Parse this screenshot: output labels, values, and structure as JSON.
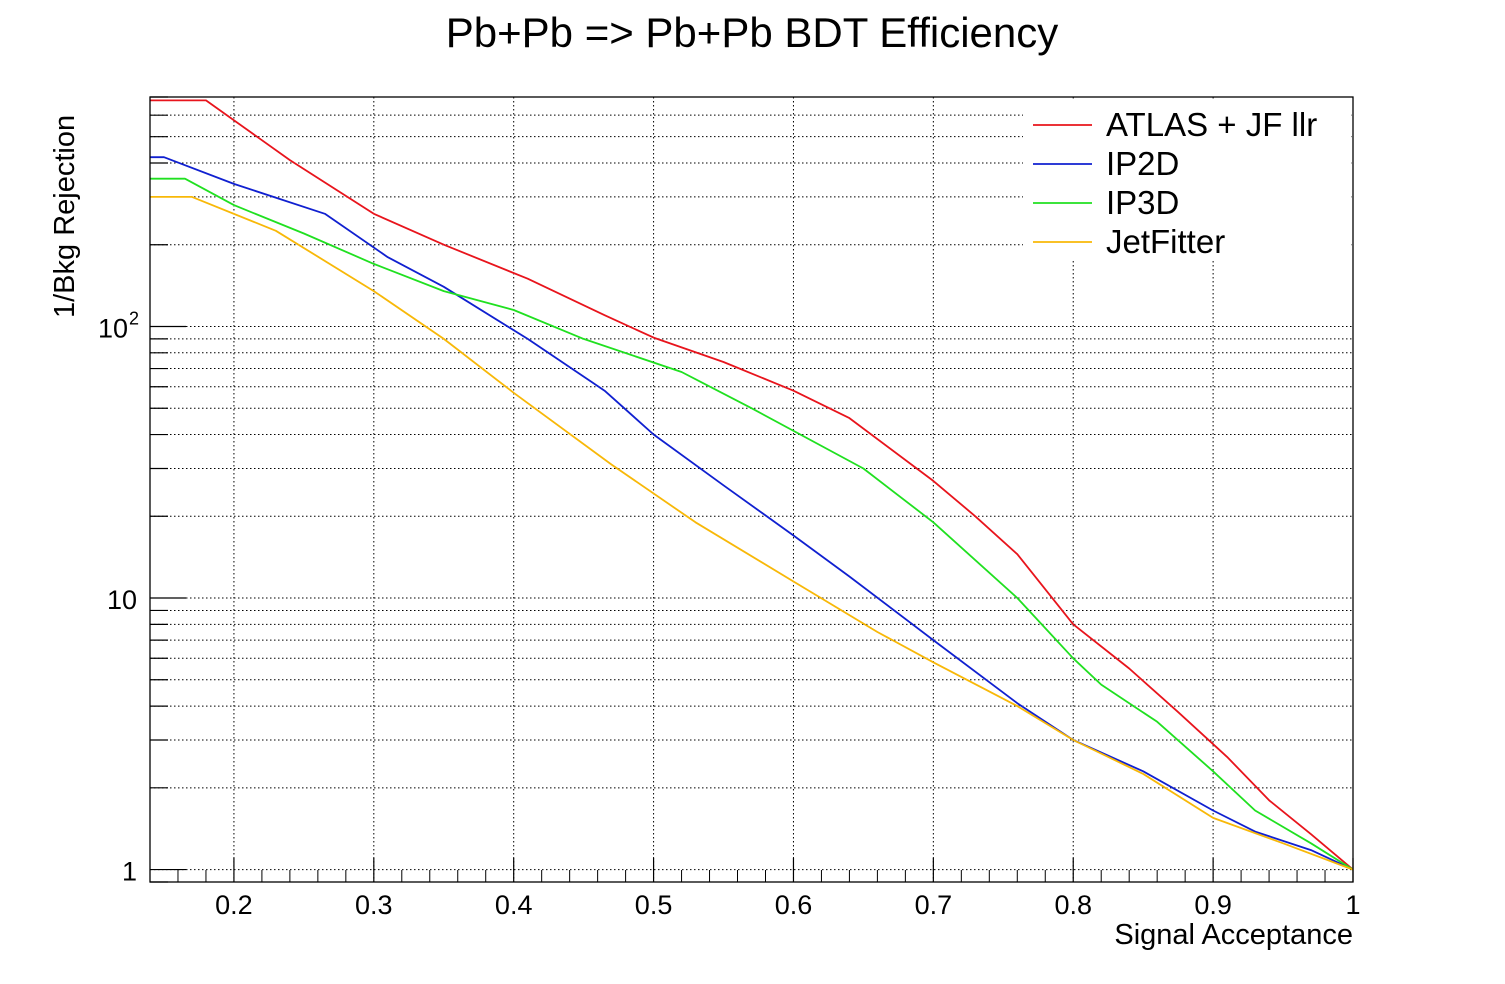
{
  "chart_data": {
    "type": "line",
    "title": "Pb+Pb => Pb+Pb BDT Efficiency",
    "xlabel": "Signal Acceptance",
    "ylabel": "1/Bkg Rejection",
    "xlim": [
      0.14,
      1.0
    ],
    "ylim": [
      0.9,
      700
    ],
    "yscale": "log",
    "grid": true,
    "legend_position": "top-right",
    "x_ticks": [
      {
        "value": 0.2,
        "label": "0.2"
      },
      {
        "value": 0.3,
        "label": "0.3"
      },
      {
        "value": 0.4,
        "label": "0.4"
      },
      {
        "value": 0.5,
        "label": "0.5"
      },
      {
        "value": 0.6,
        "label": "0.6"
      },
      {
        "value": 0.7,
        "label": "0.7"
      },
      {
        "value": 0.8,
        "label": "0.8"
      },
      {
        "value": 0.9,
        "label": "0.9"
      },
      {
        "value": 1.0,
        "label": "1"
      }
    ],
    "y_ticks": [
      {
        "value": 1,
        "label": "1",
        "sup": ""
      },
      {
        "value": 10,
        "label": "10",
        "sup": ""
      },
      {
        "value": 100,
        "label": "10",
        "sup": "2"
      }
    ],
    "series": [
      {
        "name": "ATLAS + JF llr",
        "color": "#e8141c",
        "points": [
          [
            0.14,
            680
          ],
          [
            0.18,
            680
          ],
          [
            0.24,
            410
          ],
          [
            0.3,
            260
          ],
          [
            0.35,
            200
          ],
          [
            0.41,
            150
          ],
          [
            0.465,
            110
          ],
          [
            0.5,
            91
          ],
          [
            0.55,
            74
          ],
          [
            0.6,
            58
          ],
          [
            0.64,
            46
          ],
          [
            0.7,
            27
          ],
          [
            0.73,
            20
          ],
          [
            0.76,
            14.5
          ],
          [
            0.8,
            8
          ],
          [
            0.84,
            5.5
          ],
          [
            0.875,
            3.8
          ],
          [
            0.91,
            2.6
          ],
          [
            0.94,
            1.8
          ],
          [
            0.97,
            1.35
          ],
          [
            1.0,
            1.0
          ]
        ]
      },
      {
        "name": "IP2D",
        "color": "#1020d0",
        "points": [
          [
            0.14,
            420
          ],
          [
            0.15,
            420
          ],
          [
            0.2,
            335
          ],
          [
            0.265,
            260
          ],
          [
            0.31,
            180
          ],
          [
            0.35,
            140
          ],
          [
            0.41,
            90
          ],
          [
            0.465,
            58
          ],
          [
            0.5,
            40
          ],
          [
            0.55,
            26
          ],
          [
            0.6,
            17
          ],
          [
            0.64,
            12
          ],
          [
            0.7,
            7
          ],
          [
            0.76,
            4.1
          ],
          [
            0.8,
            3.0
          ],
          [
            0.85,
            2.3
          ],
          [
            0.9,
            1.65
          ],
          [
            0.93,
            1.38
          ],
          [
            0.97,
            1.18
          ],
          [
            1.0,
            1.0
          ]
        ]
      },
      {
        "name": "IP3D",
        "color": "#20e020",
        "points": [
          [
            0.14,
            350
          ],
          [
            0.165,
            350
          ],
          [
            0.2,
            280
          ],
          [
            0.25,
            220
          ],
          [
            0.3,
            170
          ],
          [
            0.35,
            135
          ],
          [
            0.4,
            115
          ],
          [
            0.45,
            90
          ],
          [
            0.52,
            68
          ],
          [
            0.57,
            50
          ],
          [
            0.65,
            30
          ],
          [
            0.7,
            19
          ],
          [
            0.76,
            10
          ],
          [
            0.8,
            6
          ],
          [
            0.82,
            4.8
          ],
          [
            0.86,
            3.5
          ],
          [
            0.9,
            2.3
          ],
          [
            0.93,
            1.65
          ],
          [
            0.97,
            1.25
          ],
          [
            1.0,
            1.0
          ]
        ]
      },
      {
        "name": "JetFitter",
        "color": "#f8b808",
        "points": [
          [
            0.14,
            300
          ],
          [
            0.17,
            300
          ],
          [
            0.23,
            225
          ],
          [
            0.3,
            135
          ],
          [
            0.35,
            90
          ],
          [
            0.4,
            57
          ],
          [
            0.47,
            31
          ],
          [
            0.53,
            19
          ],
          [
            0.6,
            11.5
          ],
          [
            0.66,
            7.5
          ],
          [
            0.7,
            5.8
          ],
          [
            0.76,
            4.0
          ],
          [
            0.8,
            3.0
          ],
          [
            0.85,
            2.25
          ],
          [
            0.9,
            1.55
          ],
          [
            0.95,
            1.25
          ],
          [
            1.0,
            1.0
          ]
        ]
      }
    ]
  }
}
